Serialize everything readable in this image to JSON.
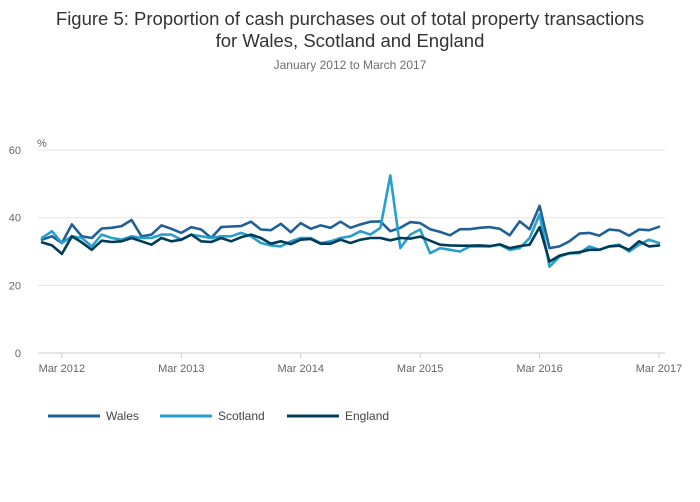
{
  "chart_data": {
    "type": "line",
    "title_line1": "Figure 5: Proportion of cash purchases out of total property transactions",
    "title_line2": "for Wales, Scotland and England",
    "subtitle": "January 2012 to March 2017",
    "ylabel": "%",
    "ylim": [
      0,
      60
    ],
    "yticks": [
      "0",
      "20",
      "40",
      "60"
    ],
    "xtick_labels": [
      "Mar 2012",
      "Mar 2013",
      "Mar 2014",
      "Mar 2015",
      "Mar 2016",
      "Mar 2017"
    ],
    "xtick_months": [
      2,
      14,
      26,
      38,
      50,
      62
    ],
    "month_count": 63,
    "grid": "horizontal",
    "legend_position": "bottom-left",
    "series": [
      {
        "name": "Wales",
        "color": "#206095",
        "values": [
          33.5,
          34.5,
          32.5,
          38,
          34.5,
          34,
          36.8,
          37,
          37.5,
          39.3,
          34.5,
          35,
          37.7,
          36.7,
          35.5,
          37.2,
          36.5,
          34,
          37.2,
          37.4,
          37.5,
          38.8,
          36.5,
          36.3,
          38.2,
          35.7,
          38.4,
          36.7,
          37.7,
          37,
          38.8,
          37,
          38,
          38.8,
          38.9,
          36,
          37,
          38.7,
          38.4,
          36.6,
          35.8,
          34.8,
          36.6,
          36.6,
          37,
          37.2,
          36.7,
          34.8,
          38.9,
          36.6,
          43.5,
          31,
          31.5,
          33,
          35.3,
          35.5,
          34.7,
          36.5,
          36.2,
          34.7,
          36.5,
          36.3,
          37.3
        ]
      },
      {
        "name": "Scotland",
        "color": "#27a0cc",
        "values": [
          34,
          36,
          32.5,
          34.5,
          34,
          31.5,
          35,
          34,
          33.5,
          34.5,
          34,
          34,
          35,
          35,
          33.5,
          35,
          34.5,
          34,
          34.5,
          34.5,
          35.5,
          34.5,
          32.5,
          31.8,
          31.5,
          33,
          34,
          34,
          32.5,
          33,
          34,
          34.5,
          36,
          35,
          37,
          52.5,
          31,
          35,
          36.5,
          29.5,
          31,
          30.5,
          30,
          31.5,
          31.5,
          31.5,
          32,
          30.5,
          31,
          34,
          41,
          25.5,
          28.5,
          29.5,
          29.5,
          31.5,
          30.5,
          31.5,
          32,
          30,
          32,
          33.5,
          32.5
        ]
      },
      {
        "name": "England",
        "color": "#003c57",
        "values": [
          32.7,
          31.8,
          29.3,
          34.5,
          32.7,
          30.5,
          33.2,
          32.8,
          33,
          34,
          33,
          32,
          34,
          33,
          33.5,
          35,
          33,
          32.8,
          34,
          33,
          34.2,
          35,
          34,
          32.3,
          33,
          32.2,
          33.5,
          33.7,
          32.3,
          32.3,
          33.5,
          32.5,
          33.5,
          34,
          34,
          33.3,
          34,
          33.8,
          34.4,
          33.2,
          32,
          31.8,
          31.7,
          31.7,
          31.8,
          31.6,
          32.1,
          31,
          31.6,
          32,
          37.2,
          27,
          28.8,
          29.5,
          29.8,
          30.5,
          30.5,
          31.5,
          31.7,
          30.5,
          33,
          31.5,
          31.8
        ]
      }
    ]
  }
}
